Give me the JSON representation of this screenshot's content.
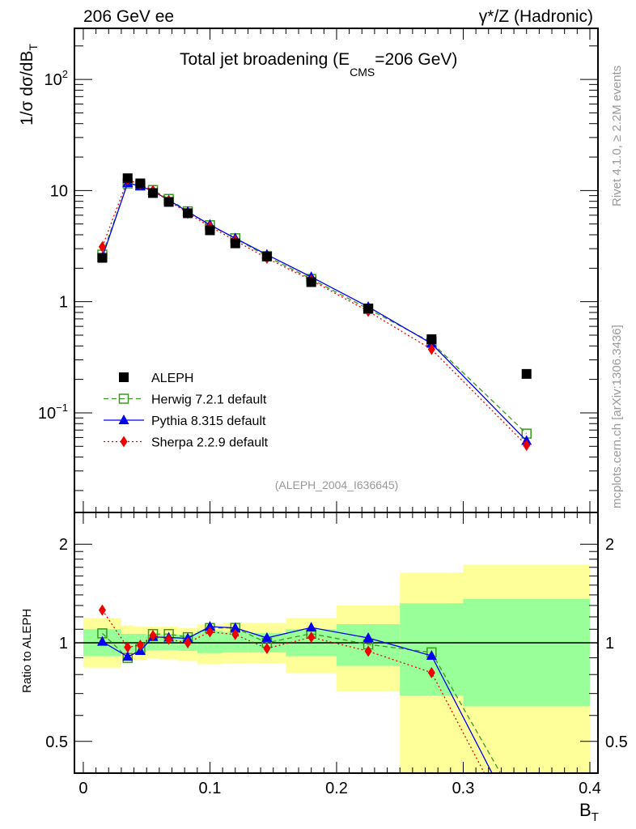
{
  "header": {
    "left": "206 GeV ee",
    "right": "γ*/Z (Hadronic)"
  },
  "side_labels": {
    "rivet": "Rivet 4.1.0, ≥ 2.2M events",
    "mcplots": "mcplots.cern.ch [arXiv:1306.3436]"
  },
  "colors": {
    "data": "#000000",
    "herwig": "#3a9a1c",
    "pythia": "#0000ee",
    "sherpa": "#ee0000",
    "band_inner": "#99ff99",
    "band_outer": "#ffff99"
  },
  "chart_data": [
    {
      "type": "line",
      "title_main": "Total jet broadening (E",
      "title_sub": "CMS",
      "title_end": "=206 GeV)",
      "ylabel_main": "1/σ  dσ/dB",
      "ylabel_sub": "T",
      "yscale": "log",
      "ylim": [
        0.0127,
        288
      ],
      "xlim": [
        -0.007,
        0.4064
      ],
      "ytick_labels": [
        {
          "v": 0.1,
          "base": "10",
          "exp": "−1"
        },
        {
          "v": 1,
          "base": "1",
          "exp": ""
        },
        {
          "v": 10,
          "base": "10",
          "exp": ""
        },
        {
          "v": 100,
          "base": "10",
          "exp": "2"
        }
      ],
      "analysis_label": "(ALEPH_2004_I636645)",
      "legend_position": "bottom-left",
      "x": [
        0.015,
        0.035,
        0.045,
        0.055,
        0.0675,
        0.0825,
        0.1,
        0.12,
        0.145,
        0.18,
        0.225,
        0.275,
        0.35
      ],
      "bin_edges": [
        0,
        0.03,
        0.04,
        0.05,
        0.06,
        0.075,
        0.09,
        0.11,
        0.13,
        0.16,
        0.2,
        0.25,
        0.3,
        0.4
      ],
      "series": [
        {
          "key": "data",
          "name": "ALEPH",
          "marker": "square-filled",
          "line": "none",
          "values": [
            2.48,
            12.9,
            11.6,
            9.5,
            7.9,
            6.25,
            4.39,
            3.35,
            2.56,
            1.5,
            0.87,
            0.46,
            0.224
          ]
        },
        {
          "key": "herwig",
          "name": "Herwig 7.2.1 default",
          "marker": "square-open",
          "line": "dashed",
          "values": [
            2.65,
            11.6,
            11.1,
            10.1,
            8.4,
            6.5,
            4.87,
            3.72,
            2.56,
            1.6,
            0.86,
            0.43,
            0.065
          ]
        },
        {
          "key": "pythia",
          "name": "Pythia 8.315 default",
          "marker": "triangle",
          "line": "solid",
          "values": [
            2.5,
            11.7,
            10.96,
            9.9,
            8.2,
            6.45,
            4.92,
            3.72,
            2.65,
            1.67,
            0.9,
            0.42,
            0.056
          ]
        },
        {
          "key": "sherpa",
          "name": "Sherpa 2.2.9 default",
          "marker": "diamond",
          "line": "dotted",
          "values": [
            3.12,
            12.5,
            11.4,
            10.0,
            8.1,
            6.25,
            4.74,
            3.55,
            2.46,
            1.56,
            0.82,
            0.373,
            0.051
          ]
        }
      ]
    },
    {
      "type": "line",
      "ylabel": "Ratio to ALEPH",
      "xlabel_main": "B",
      "xlabel_sub": "T",
      "yscale": "log",
      "ylim": [
        0.4,
        2.5
      ],
      "xlim": [
        -0.007,
        0.4064
      ],
      "ytick_labels": [
        {
          "v": 0.5,
          "label": "0.5"
        },
        {
          "v": 1,
          "label": "1"
        },
        {
          "v": 2,
          "label": "2"
        }
      ],
      "xtick_labels": [
        {
          "v": 0,
          "label": "0"
        },
        {
          "v": 0.1,
          "label": "0.1"
        },
        {
          "v": 0.2,
          "label": "0.2"
        },
        {
          "v": 0.3,
          "label": "0.3"
        },
        {
          "v": 0.4,
          "label": "0.4"
        }
      ],
      "reference_line": 1,
      "band_inner": {
        "up": [
          1.1,
          1.065,
          1.065,
          1.06,
          1.06,
          1.06,
          1.09,
          1.08,
          1.07,
          1.1,
          1.14,
          1.32,
          1.36
        ],
        "down": [
          0.91,
          0.94,
          0.94,
          0.95,
          0.95,
          0.945,
          0.93,
          0.935,
          0.935,
          0.91,
          0.85,
          0.69,
          0.64
        ]
      },
      "band_outer": {
        "up": [
          1.19,
          1.13,
          1.12,
          1.12,
          1.12,
          1.11,
          1.14,
          1.15,
          1.15,
          1.19,
          1.3,
          1.64,
          1.73
        ],
        "down": [
          0.84,
          0.89,
          0.885,
          0.895,
          0.89,
          0.88,
          0.86,
          0.865,
          0.865,
          0.81,
          0.71,
          0.3,
          0.3
        ]
      }
    }
  ]
}
